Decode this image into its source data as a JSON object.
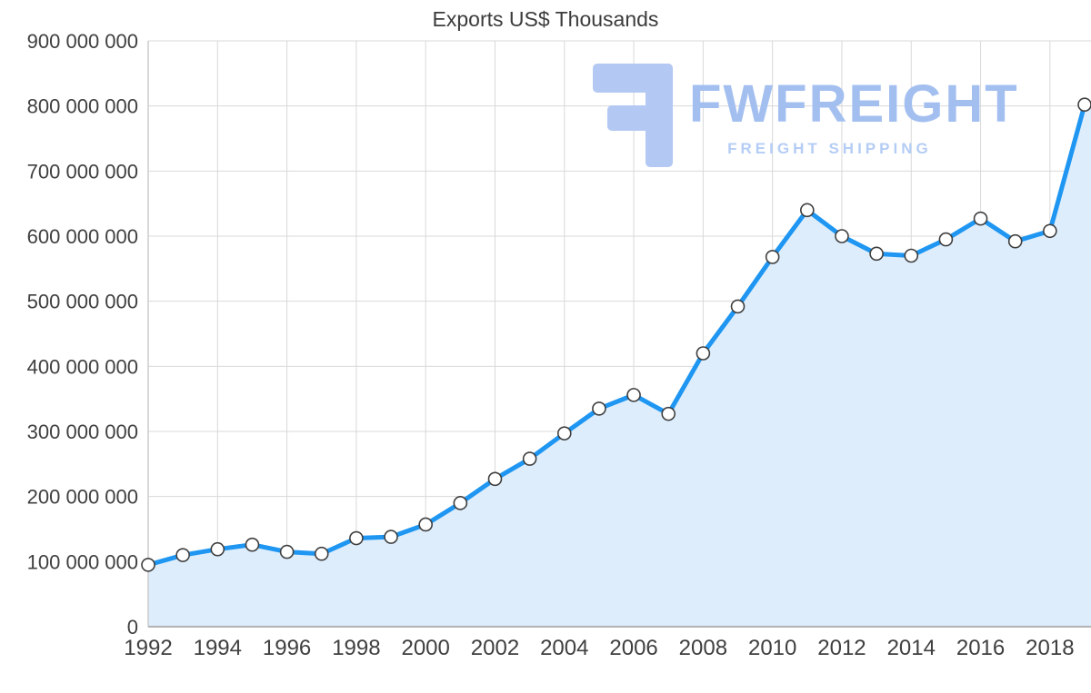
{
  "title": "Exports US$ Thousands",
  "watermark": {
    "brand": "FWFREIGHT",
    "tagline": "FREIGHT SHIPPING"
  },
  "colors": {
    "line": "#1e96f2",
    "area_fill": "#ddedfb",
    "grid": "#d9d9d9",
    "axis_left": "#cccccc",
    "axis_bottom": "#b3b3b3",
    "label_text": "#404040",
    "marker_fill": "#ffffff",
    "marker_stroke": "#3f3f3f",
    "watermark_text": "#a3bff0",
    "watermark_tagline": "#b5cdf5",
    "watermark_logo": "#b3c9f3"
  },
  "chart_data": {
    "type": "area",
    "title": "Exports US$ Thousands",
    "series_name": "Exports US$ Thousands",
    "x": [
      1992,
      1993,
      1994,
      1995,
      1996,
      1997,
      1998,
      1999,
      2000,
      2001,
      2002,
      2003,
      2004,
      2005,
      2006,
      2007,
      2008,
      2009,
      2010,
      2011,
      2012,
      2013,
      2014,
      2015,
      2016,
      2017,
      2018,
      2019
    ],
    "values": [
      95000000,
      110000000,
      119000000,
      126000000,
      115000000,
      112000000,
      136000000,
      138000000,
      157000000,
      190000000,
      227000000,
      258000000,
      297000000,
      335000000,
      356000000,
      327000000,
      420000000,
      492000000,
      568000000,
      640000000,
      600000000,
      573000000,
      570000000,
      595000000,
      627000000,
      592000000,
      608000000,
      802000000
    ],
    "ylim": [
      0,
      900000000
    ],
    "y_tick_step": 100000000,
    "y_tick_labels": [
      "0",
      "100 000 000",
      "200 000 000",
      "300 000 000",
      "400 000 000",
      "500 000 000",
      "600 000 000",
      "700 000 000",
      "800 000 000",
      "900 000 000"
    ],
    "x_tick_labels": [
      "1992",
      "1994",
      "1996",
      "1998",
      "2000",
      "2002",
      "2004",
      "2006",
      "2008",
      "2010",
      "2012",
      "2014",
      "2016",
      "2018"
    ],
    "grid": true,
    "legend": "none",
    "marker": "circle"
  }
}
